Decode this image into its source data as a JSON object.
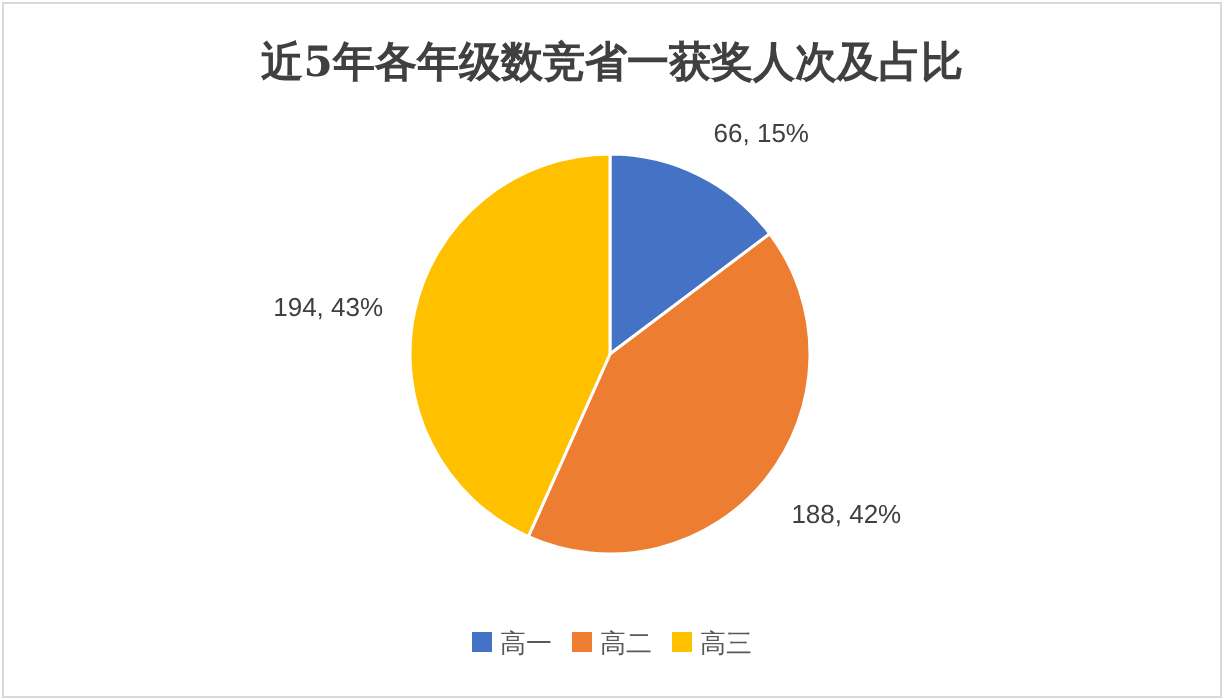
{
  "chart_data": {
    "type": "pie",
    "title": "近5年各年级数竞省一获奖人次及占比",
    "categories": [
      "高一",
      "高二",
      "高三"
    ],
    "values": [
      66,
      188,
      194
    ],
    "colors": [
      "#4472c4",
      "#ed7d31",
      "#ffc000"
    ],
    "value_labels": [
      "66, 15%",
      "188, 42%",
      "194, 43%"
    ],
    "legend": "bottom"
  }
}
